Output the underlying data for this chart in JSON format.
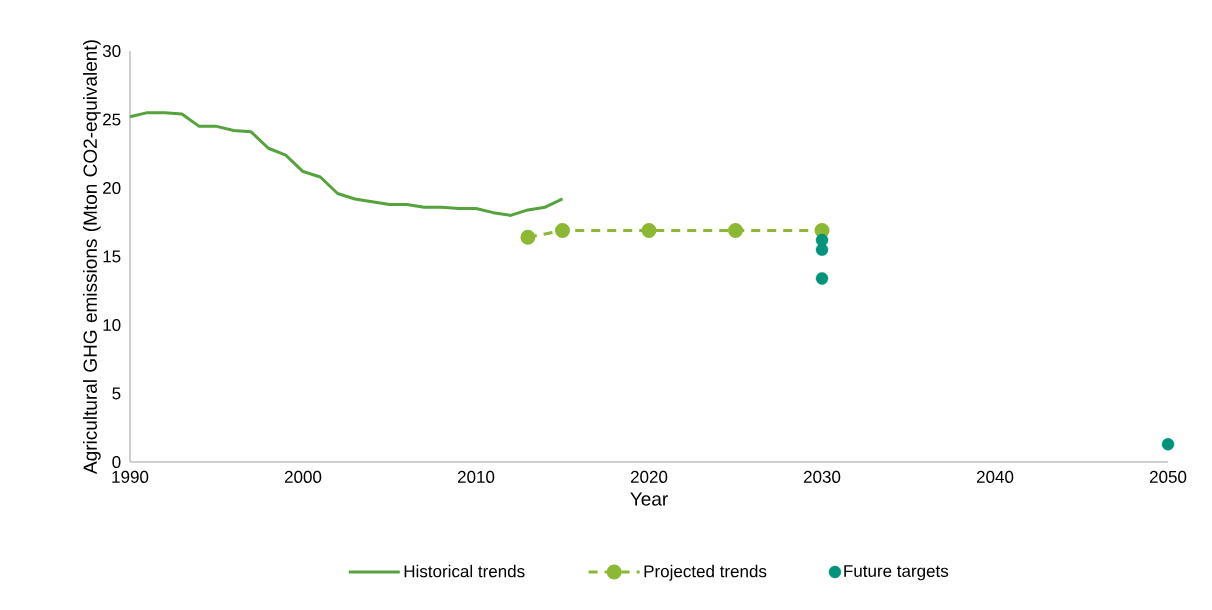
{
  "chart_data": {
    "type": "line",
    "xlabel": "Year",
    "ylabel": "Agricultural GHG emissions (Mton CO2-equivalent)",
    "xlim": [
      1990,
      2050
    ],
    "xticks": [
      1990,
      2000,
      2010,
      2020,
      2030,
      2040,
      2050
    ],
    "ylim": [
      0,
      30
    ],
    "yticks": [
      0,
      5,
      10,
      15,
      20,
      25,
      30
    ],
    "legend": "bottom",
    "series": [
      {
        "name": "Historical trends",
        "color": "#56a23c",
        "marker": "none",
        "line_style": "solid",
        "x": [
          1990,
          1991,
          1992,
          1993,
          1994,
          1995,
          1996,
          1997,
          1998,
          1999,
          2000,
          2001,
          2002,
          2003,
          2004,
          2005,
          2006,
          2007,
          2008,
          2009,
          2010,
          2011,
          2012,
          2013,
          2014,
          2015
        ],
        "values": [
          25.2,
          25.5,
          25.5,
          25.4,
          24.5,
          24.5,
          24.2,
          24.1,
          22.9,
          22.4,
          21.2,
          20.8,
          19.6,
          19.2,
          19.0,
          18.8,
          18.8,
          18.6,
          18.6,
          18.5,
          18.5,
          18.2,
          18.0,
          18.4,
          18.6,
          19.2
        ]
      },
      {
        "name": "Projected trends",
        "color": "#8cb834",
        "marker": "circle",
        "line_style": "dashed",
        "x": [
          2013,
          2015,
          2020,
          2025,
          2030
        ],
        "values": [
          16.4,
          16.9,
          16.9,
          16.9,
          16.9
        ]
      },
      {
        "name": "Future targets",
        "type": "scatter",
        "color": "#00957a",
        "marker": "circle",
        "x": [
          2030,
          2030,
          2030,
          2050
        ],
        "values": [
          16.2,
          15.5,
          13.4,
          1.3
        ]
      }
    ]
  }
}
